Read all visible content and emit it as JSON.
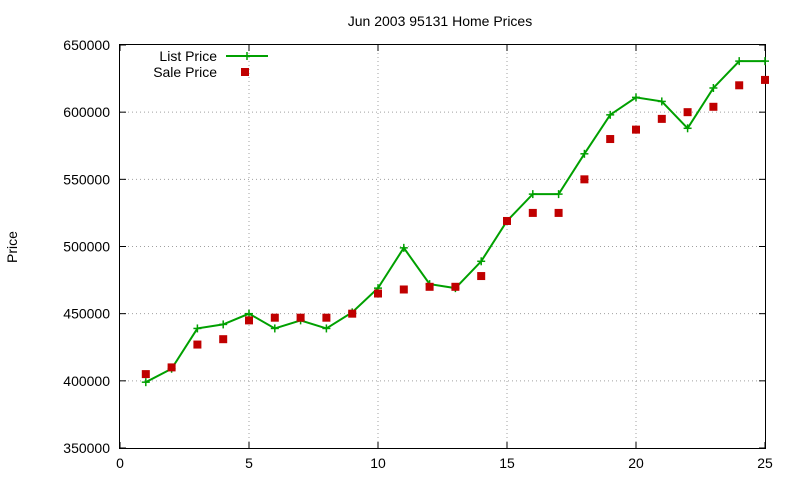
{
  "chart_data": {
    "type": "line",
    "title": "Jun 2003 95131 Home Prices",
    "xlabel": "",
    "ylabel": "Price",
    "xlim": [
      0,
      25
    ],
    "ylim": [
      350000,
      650000
    ],
    "x_ticks": [
      0,
      5,
      10,
      15,
      20,
      25
    ],
    "y_ticks": [
      350000,
      400000,
      450000,
      500000,
      550000,
      600000,
      650000
    ],
    "grid": true,
    "legend_position": "top-left",
    "series": [
      {
        "name": "List Price",
        "style": "linespoints",
        "marker": "plus",
        "color": "#00a000",
        "x": [
          1,
          2,
          3,
          4,
          5,
          6,
          7,
          8,
          9,
          10,
          11,
          12,
          13,
          14,
          15,
          16,
          17,
          18,
          19,
          20,
          21,
          22,
          23,
          24,
          25
        ],
        "y": [
          399000,
          409000,
          439000,
          442000,
          450000,
          439000,
          445000,
          439000,
          451000,
          469000,
          499000,
          472000,
          469000,
          489000,
          519000,
          539000,
          539000,
          569000,
          598000,
          611000,
          608000,
          588000,
          618000,
          638000,
          638000
        ]
      },
      {
        "name": "Sale Price",
        "style": "points",
        "marker": "square",
        "color": "#c00000",
        "x": [
          1,
          2,
          3,
          4,
          5,
          6,
          7,
          8,
          9,
          10,
          11,
          12,
          13,
          14,
          15,
          16,
          17,
          18,
          19,
          20,
          21,
          22,
          23,
          24,
          25
        ],
        "y": [
          405000,
          410000,
          427000,
          431000,
          445000,
          447000,
          447000,
          447000,
          450000,
          465000,
          468000,
          470000,
          470000,
          478000,
          519000,
          525000,
          525000,
          550000,
          580000,
          587000,
          595000,
          600000,
          604000,
          620000,
          624000
        ]
      }
    ]
  }
}
